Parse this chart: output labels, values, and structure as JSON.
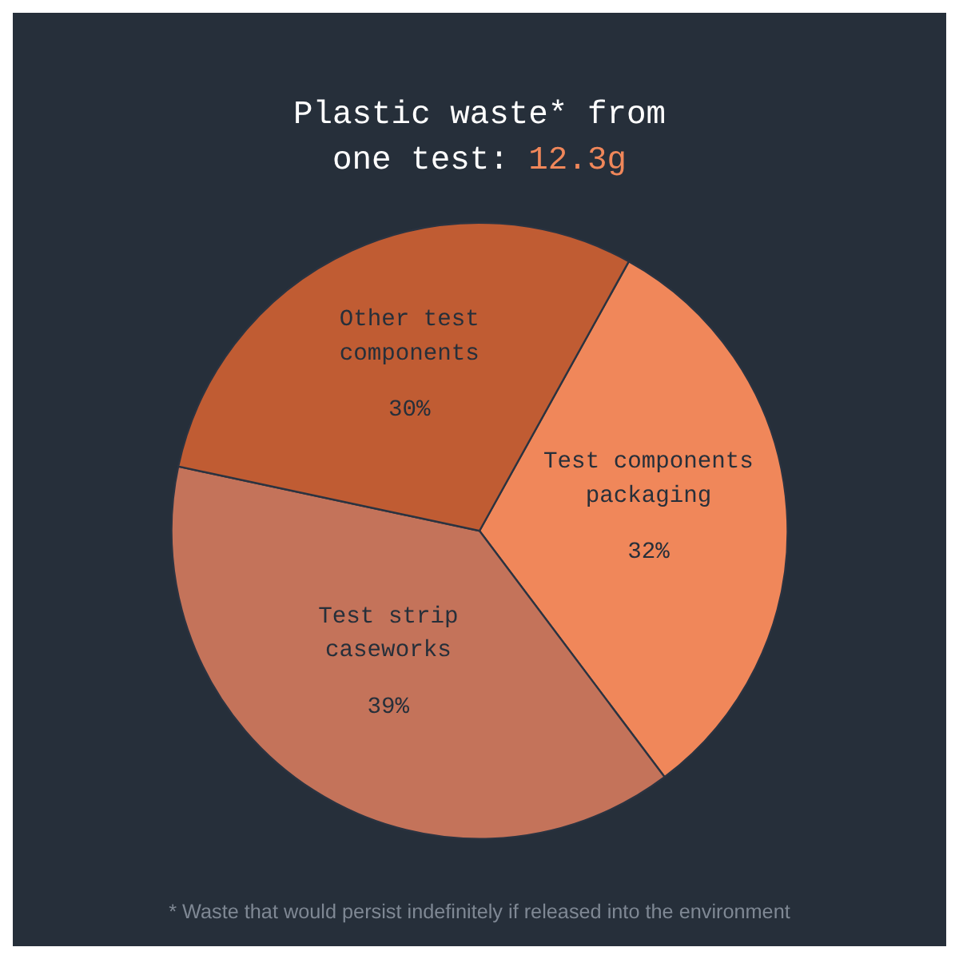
{
  "chart_data": {
    "type": "pie",
    "title": "Plastic waste* from one test: 12.3g",
    "categories": [
      "Test components packaging",
      "Test strip caseworks",
      "Other test components"
    ],
    "values": [
      32,
      39,
      30
    ],
    "value_labels": [
      "32%",
      "39%",
      "30%"
    ],
    "colors": [
      "#f0875a",
      "#c4735a",
      "#c05c33"
    ],
    "annotations": [
      "* Waste that would persist indefinitely if released into the environment"
    ]
  }
}
